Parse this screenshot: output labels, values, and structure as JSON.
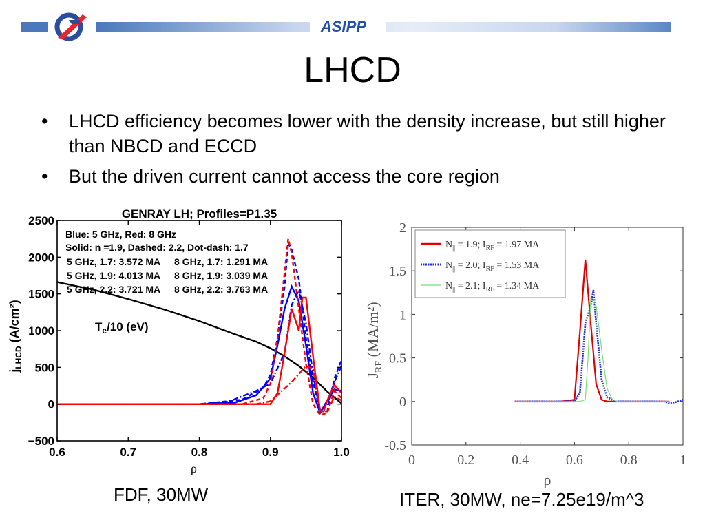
{
  "header": {
    "org": "ASIPP",
    "bar_color_dark": "#2f5fa8",
    "bar_color_light": "#dde6f4",
    "logo_icon": "asipp-logo-icon"
  },
  "slide": {
    "title": "LHCD",
    "bullets": [
      "LHCD efficiency becomes lower with the density increase, but still higher than NBCD and ECCD",
      "But the driven current  cannot access the core region"
    ],
    "bullet_glyph": "•"
  },
  "captions": {
    "left": "FDF, 30MW",
    "right": "ITER, 30MW, ne=7.25e19/m^3"
  },
  "chart_data": [
    {
      "type": "line",
      "title": "GENRAY LH; Profiles=P1.35",
      "xlabel": "ρ",
      "ylabel_main": "j",
      "ylabel_sub": "LHCD",
      "ylabel_unit": "(A/cm²)",
      "xlim": [
        0.6,
        1.0
      ],
      "ylim": [
        -500,
        2500
      ],
      "xticks": [
        "0.6",
        "0.7",
        "0.8",
        "0.9",
        "1.0"
      ],
      "yticks": [
        "2500",
        "2000",
        "1500",
        "1000",
        "500",
        "0",
        "−500"
      ],
      "ytick_values": [
        2500,
        2000,
        1500,
        1000,
        500,
        0,
        -500
      ],
      "xtick_values": [
        0.6,
        0.7,
        0.8,
        0.9,
        1.0
      ],
      "annotations": [
        "Blue: 5 GHz, Red: 8 GHz",
        "Solid: n  =1.9, Dashed: 2.2, Dot-dash: 1.7",
        "5 GHz, 1.7: 3.572 MA",
        "5 GHz, 1.9: 4.013 MA",
        "5 GHz, 2.2: 3.721 MA",
        "8 GHz, 1.7: 1.291 MA",
        "8 GHz, 1.9: 3.039 MA",
        "8 GHz, 2.2: 3.763 MA"
      ],
      "te_label_main": "T",
      "te_label_sub": "e",
      "te_label_rest": "/10 (eV)",
      "series": [
        {
          "color": "#000000",
          "dash": "solid",
          "x": [
            0.6,
            0.65,
            0.7,
            0.75,
            0.8,
            0.85,
            0.88,
            0.9,
            0.92,
            0.94,
            0.96,
            0.98,
            1.0
          ],
          "y": [
            1660,
            1560,
            1430,
            1290,
            1130,
            950,
            850,
            760,
            650,
            520,
            360,
            170,
            10
          ]
        },
        {
          "color": "#0000ff",
          "dash": "solid",
          "x": [
            0.6,
            0.8,
            0.85,
            0.88,
            0.9,
            0.91,
            0.92,
            0.93,
            0.94,
            0.95,
            0.96,
            0.97,
            0.98,
            0.99,
            1.0
          ],
          "y": [
            0,
            0,
            20,
            120,
            350,
            800,
            1300,
            1600,
            1400,
            800,
            150,
            -120,
            50,
            200,
            180
          ]
        },
        {
          "color": "#0000ff",
          "dash": "6 4",
          "x": [
            0.6,
            0.8,
            0.86,
            0.89,
            0.9,
            0.91,
            0.92,
            0.925,
            0.93,
            0.94,
            0.95,
            0.96,
            0.97,
            0.98,
            0.99,
            1.0
          ],
          "y": [
            0,
            0,
            60,
            220,
            400,
            900,
            1600,
            2200,
            2100,
            1700,
            900,
            300,
            -100,
            -100,
            350,
            600
          ]
        },
        {
          "color": "#0000ff",
          "dash": "8 3 2 3",
          "x": [
            0.6,
            0.8,
            0.84,
            0.88,
            0.9,
            0.92,
            0.93,
            0.94,
            0.95,
            0.96,
            0.97,
            0.98,
            0.99,
            1.0
          ],
          "y": [
            0,
            0,
            30,
            180,
            280,
            700,
            1350,
            1550,
            1100,
            400,
            -100,
            0,
            300,
            520
          ]
        },
        {
          "color": "#ff0000",
          "dash": "solid",
          "x": [
            0.6,
            0.9,
            0.91,
            0.92,
            0.93,
            0.94,
            0.945,
            0.95,
            0.96,
            0.97,
            0.975,
            0.98,
            0.99,
            1.0
          ],
          "y": [
            0,
            0,
            150,
            700,
            1300,
            1000,
            1450,
            1450,
            650,
            -100,
            -100,
            50,
            260,
            150
          ]
        },
        {
          "color": "#ff0000",
          "dash": "6 4",
          "x": [
            0.6,
            0.86,
            0.89,
            0.9,
            0.91,
            0.92,
            0.925,
            0.93,
            0.94,
            0.95,
            0.96,
            0.97,
            0.98,
            0.99,
            1.0
          ],
          "y": [
            0,
            0,
            80,
            280,
            900,
            1800,
            2250,
            2050,
            1300,
            550,
            0,
            -150,
            -120,
            180,
            80
          ]
        },
        {
          "color": "#ff0000",
          "dash": "8 3 2 3",
          "x": [
            0.6,
            0.88,
            0.9,
            0.93,
            0.95,
            0.96,
            0.97,
            0.98,
            0.99,
            1.0
          ],
          "y": [
            0,
            0,
            40,
            300,
            520,
            480,
            -100,
            -100,
            100,
            50
          ]
        }
      ]
    },
    {
      "type": "line",
      "xlabel": "ρ",
      "ylabel_main": "J",
      "ylabel_sub": "RF",
      "ylabel_unit": "(MA/m²)",
      "xlim": [
        0,
        1
      ],
      "ylim": [
        -0.5,
        2
      ],
      "xticks": [
        "0",
        "0.2",
        "0.4",
        "0.6",
        "0.8",
        "1"
      ],
      "xtick_values": [
        0,
        0.2,
        0.4,
        0.6,
        0.8,
        1
      ],
      "yticks": [
        "2",
        "1.5",
        "1",
        "0.5",
        "0",
        "-0.5"
      ],
      "ytick_values": [
        2,
        1.5,
        1,
        0.5,
        0,
        -0.5
      ],
      "legend_position": "top-left",
      "legend": [
        {
          "n": "N",
          "n_sub": "||",
          "n_val": " = 1.9; I",
          "i_sub": "RF",
          "i_val": " = 1.97 MA",
          "color": "#e00000",
          "dash": "solid"
        },
        {
          "n": "N",
          "n_sub": "||",
          "n_val": " = 2.0; I",
          "i_sub": "RF",
          "i_val": " = 1.53 MA",
          "color": "#2233dd",
          "dash": "2 1.5"
        },
        {
          "n": "N",
          "n_sub": "||",
          "n_val": " = 2.1; I",
          "i_sub": "RF",
          "i_val": " = 1.34 MA",
          "color": "#77dd77",
          "dash": "solid"
        }
      ],
      "series": [
        {
          "color": "#e00000",
          "dash": "solid",
          "width": 2.2,
          "x": [
            0.38,
            0.55,
            0.6,
            0.62,
            0.64,
            0.66,
            0.68,
            0.7,
            0.72,
            0.95
          ],
          "y": [
            0,
            0,
            0.02,
            0.8,
            1.63,
            0.9,
            0.2,
            0.02,
            0,
            0
          ]
        },
        {
          "color": "#2233dd",
          "dash": "2 1.5",
          "width": 2.6,
          "x": [
            0.38,
            0.6,
            0.62,
            0.64,
            0.66,
            0.67,
            0.68,
            0.7,
            0.72,
            0.75,
            0.93,
            0.95,
            0.97,
            1.0
          ],
          "y": [
            0,
            0,
            0.1,
            0.9,
            1.1,
            1.28,
            0.9,
            0.25,
            0.05,
            0,
            0,
            -0.02,
            -0.01,
            0.02
          ]
        },
        {
          "color": "#77dd77",
          "dash": "solid",
          "width": 1.2,
          "x": [
            0.38,
            0.62,
            0.64,
            0.65,
            0.66,
            0.68,
            0.7,
            0.72,
            0.74,
            0.76,
            0.95
          ],
          "y": [
            0,
            0,
            0.02,
            0.5,
            1.18,
            1.1,
            0.6,
            0.15,
            0.02,
            0,
            0
          ]
        }
      ]
    }
  ]
}
